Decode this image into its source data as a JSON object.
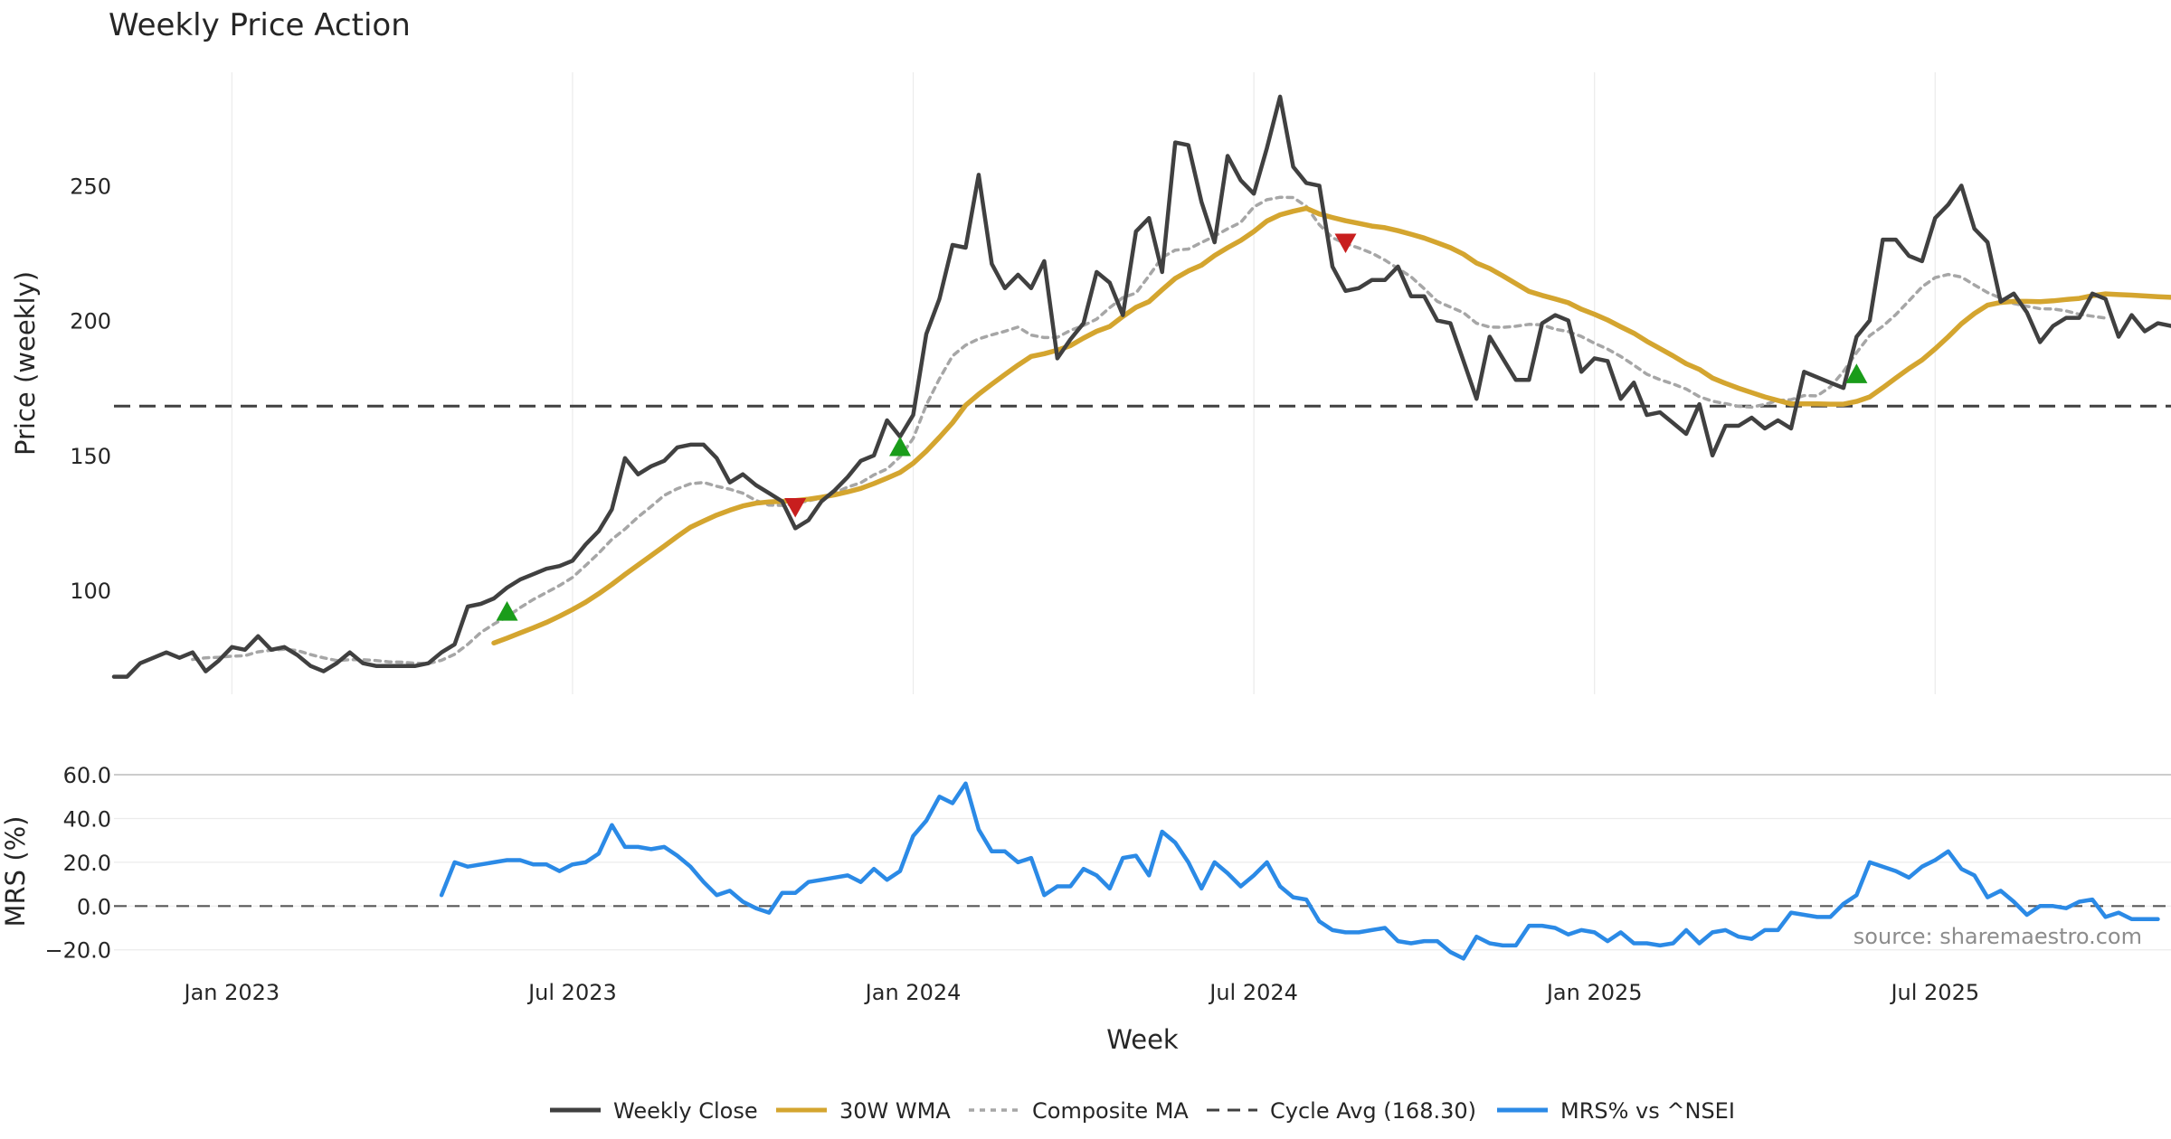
{
  "chart_data": [
    {
      "type": "line",
      "title": "Weekly Price Action",
      "ylabel": "Price (weekly)",
      "ylim": [
        61.5,
        292
      ],
      "yticks": [
        100,
        150,
        200,
        250
      ],
      "x_start": "2022-10-31",
      "x_step_days": 7,
      "cycle_avg": 168.3,
      "colors": {
        "close": "#404040",
        "wma": "#d4a52f",
        "composite": "#a6a6a6",
        "cycle": "#404040",
        "buy": "#1a9c1a",
        "sell": "#c81e1e"
      },
      "series": [
        {
          "name": "Weekly Close",
          "values": [
            68,
            68,
            73,
            75,
            77,
            75,
            77,
            70,
            74,
            79,
            78,
            83,
            78,
            79,
            76,
            72,
            70,
            73,
            77,
            73,
            72,
            72,
            72,
            72,
            73,
            77,
            80,
            94,
            95,
            97,
            101,
            104,
            106,
            108,
            109,
            111,
            117,
            122,
            130,
            149,
            143,
            146,
            148,
            153,
            154,
            154,
            149,
            140,
            143,
            139,
            136,
            133,
            123,
            126,
            133,
            137,
            142,
            148,
            150,
            163,
            157,
            165,
            195,
            208,
            228,
            227,
            254,
            221,
            212,
            217,
            212,
            222,
            186,
            193,
            199,
            218,
            214,
            202,
            233,
            238,
            218,
            266,
            265,
            244,
            229,
            261,
            252,
            247,
            264,
            283,
            257,
            251,
            250,
            220,
            211,
            212,
            215,
            215,
            220,
            209,
            209,
            200,
            199,
            185,
            171,
            194,
            186,
            178,
            178,
            199,
            202,
            200,
            181,
            186,
            185,
            171,
            177,
            165,
            166,
            162,
            158,
            169,
            150,
            161,
            161,
            164,
            160,
            163,
            160,
            181,
            179,
            177,
            175,
            194,
            200,
            230,
            230,
            224,
            222,
            238,
            243,
            250,
            234,
            229,
            207,
            210,
            203,
            192,
            198,
            201,
            201,
            210,
            208,
            194,
            202,
            196,
            199,
            198
          ],
          "color": "#404040"
        },
        {
          "name": "30W WMA",
          "values": [
            null,
            null,
            null,
            null,
            null,
            null,
            null,
            null,
            null,
            null,
            null,
            null,
            null,
            null,
            null,
            null,
            null,
            null,
            null,
            null,
            null,
            null,
            null,
            null,
            null,
            null,
            null,
            null,
            null,
            80.5,
            82.3,
            84.2,
            86.1,
            88.1,
            90.4,
            92.9,
            95.6,
            98.8,
            102.2,
            105.9,
            109.4,
            112.9,
            116.4,
            120.0,
            123.4,
            125.7,
            127.9,
            129.7,
            131.3,
            132.3,
            132.8,
            133.0,
            133.3,
            133.8,
            134.5,
            135.4,
            136.5,
            137.8,
            139.6,
            141.6,
            143.7,
            147.1,
            151.6,
            156.7,
            162.1,
            168.6,
            172.7,
            176.4,
            180.0,
            183.5,
            186.7,
            187.7,
            189.0,
            190.7,
            193.5,
            196.0,
            197.8,
            201.5,
            204.9,
            207.0,
            211.4,
            215.6,
            218.4,
            220.5,
            224.1,
            227.0,
            229.7,
            233.0,
            236.9,
            239.2,
            240.5,
            241.6,
            239.5,
            238.2,
            237.0,
            236.0,
            235.0,
            234.4,
            233.3,
            232.0,
            230.6,
            228.8,
            227.0,
            224.6,
            221.3,
            219.3,
            216.6,
            213.7,
            210.8,
            209.3,
            208.0,
            206.6,
            204.2,
            202.3,
            200.2,
            197.7,
            195.3,
            192.3,
            189.6,
            186.9,
            184.0,
            181.9,
            178.7,
            176.7,
            174.9,
            173.3,
            171.7,
            170.4,
            169.1,
            169.1,
            169.1,
            169.0,
            169.0,
            170.0,
            171.7,
            175.1,
            178.7,
            182.2,
            185.4,
            189.5,
            194.0,
            198.8,
            202.6,
            205.7,
            206.7,
            207.1,
            207.1,
            207.0,
            207.3,
            207.8,
            208.2,
            209.2,
            209.9,
            209.6,
            209.4,
            209.1,
            208.8,
            208.6
          ],
          "color": "#d4a52f"
        },
        {
          "name": "Composite MA",
          "values": [
            null,
            null,
            null,
            null,
            null,
            null,
            74.4,
            75.0,
            75.2,
            75.6,
            75.8,
            77.2,
            77.8,
            78.2,
            77.7,
            76.2,
            75.0,
            74.0,
            74.3,
            74.3,
            74.0,
            73.5,
            73.4,
            73.0,
            72.9,
            74.1,
            76.3,
            80.0,
            84.4,
            87.5,
            90.2,
            93.6,
            96.6,
            99.2,
            101.8,
            104.8,
            109.2,
            113.8,
            118.9,
            122.7,
            127.2,
            131.1,
            135.2,
            137.7,
            139.5,
            140.0,
            138.6,
            137.5,
            136.0,
            133.3,
            131.6,
            131.5,
            132.2,
            133.2,
            134.2,
            136.1,
            138.3,
            139.9,
            142.8,
            145.0,
            149.5,
            156.3,
            168.7,
            178.4,
            186.9,
            190.9,
            193.2,
            194.7,
            196.0,
            197.6,
            194.6,
            193.7,
            193.8,
            196.3,
            198.2,
            200.5,
            204.8,
            208.5,
            210.2,
            216.6,
            223.4,
            226.1,
            226.5,
            228.9,
            231.3,
            234.0,
            236.4,
            242.1,
            244.8,
            245.7,
            245.6,
            242.3,
            235.5,
            230.7,
            228.5,
            226.9,
            225.0,
            222.4,
            219.3,
            216.2,
            211.8,
            207.1,
            205.0,
            202.9,
            199.0,
            197.6,
            197.5,
            197.9,
            198.6,
            198.4,
            196.8,
            195.9,
            194.1,
            191.6,
            189.4,
            186.7,
            183.5,
            180.1,
            178.1,
            176.5,
            174.6,
            171.8,
            170.1,
            169.2,
            168.2,
            167.9,
            168.9,
            170.4,
            170.7,
            172.2,
            172.1,
            175.4,
            181.1,
            188.1,
            194.4,
            197.9,
            202.2,
            207.3,
            212.5,
            215.9,
            217.1,
            216.1,
            213.2,
            210.4,
            208.3,
            206.3,
            205.3,
            204.4,
            204.3,
            203.6,
            202.3,
            201.6,
            200.9
          ],
          "color": "#a6a6a6"
        }
      ],
      "markers": [
        {
          "type": "buy",
          "index": 30,
          "value": 92
        },
        {
          "type": "sell",
          "index": 52,
          "value": 131
        },
        {
          "type": "buy",
          "index": 60,
          "value": 153
        },
        {
          "type": "sell",
          "index": 94,
          "value": 229
        },
        {
          "type": "buy",
          "index": 133,
          "value": 180
        }
      ]
    },
    {
      "type": "line",
      "ylabel": "MRS (%)",
      "ylim": [
        -23,
        62.5
      ],
      "yticks": [
        -20,
        0,
        20,
        40,
        60
      ],
      "ytick_labels": [
        "−20.0",
        "0.0",
        "20.0",
        "40.0",
        "60.0"
      ],
      "zero_line": 0,
      "series": [
        {
          "name": "MRS% vs ^NSEI",
          "color": "#2b8ae6",
          "values": [
            null,
            null,
            null,
            null,
            null,
            null,
            null,
            null,
            null,
            null,
            null,
            null,
            null,
            null,
            null,
            null,
            null,
            null,
            null,
            null,
            null,
            null,
            null,
            null,
            null,
            5,
            20,
            18,
            19,
            20,
            21,
            21,
            19,
            19,
            16,
            19,
            20,
            24,
            37,
            27,
            27,
            26,
            27,
            23,
            18,
            11,
            5,
            7,
            2,
            -1,
            -3,
            6,
            6,
            11,
            12,
            13,
            14,
            11,
            17,
            12,
            16,
            32,
            39,
            50,
            47,
            56,
            35,
            25,
            25,
            20,
            22,
            5,
            9,
            9,
            17,
            14,
            8,
            22,
            23,
            14,
            34,
            29,
            20,
            8,
            20,
            15,
            9,
            14,
            20,
            9,
            4,
            3,
            -7,
            -11,
            -12,
            -12,
            -11,
            -10,
            -16,
            -17,
            -16,
            -16,
            -21,
            -24,
            -14,
            -17,
            -18,
            -18,
            -9,
            -9,
            -10,
            -13,
            -11,
            -12,
            -16,
            -12,
            -17,
            -17,
            -18,
            -17,
            -11,
            -17,
            -12,
            -11,
            -14,
            -15,
            -11,
            -11,
            -3,
            -4,
            -5,
            -5,
            1,
            5,
            20,
            18,
            16,
            13,
            18,
            21,
            25,
            17,
            14,
            4,
            7,
            2,
            -4,
            0,
            0,
            -1,
            2,
            3,
            -5,
            -3,
            -6,
            -6,
            -6
          ]
        }
      ]
    }
  ],
  "xaxis": {
    "label": "Week",
    "ticks": [
      {
        "label": "Jan 2023",
        "index": 9
      },
      {
        "label": "Jul 2023",
        "index": 35
      },
      {
        "label": "Jan 2024",
        "index": 61
      },
      {
        "label": "Jul 2024",
        "index": 87
      },
      {
        "label": "Jan 2025",
        "index": 113
      },
      {
        "label": "Jul 2025",
        "index": 139
      }
    ]
  },
  "legend": [
    {
      "label": "Weekly Close",
      "style": "solid",
      "color": "#404040"
    },
    {
      "label": "30W WMA",
      "style": "solid",
      "color": "#d4a52f"
    },
    {
      "label": "Composite MA",
      "style": "dotted",
      "color": "#a6a6a6"
    },
    {
      "label": "Cycle Avg (168.30)",
      "style": "dashed",
      "color": "#404040"
    },
    {
      "label": "MRS% vs ^NSEI",
      "style": "solid",
      "color": "#2b8ae6"
    }
  ],
  "source_note": "source: sharemaestro.com"
}
